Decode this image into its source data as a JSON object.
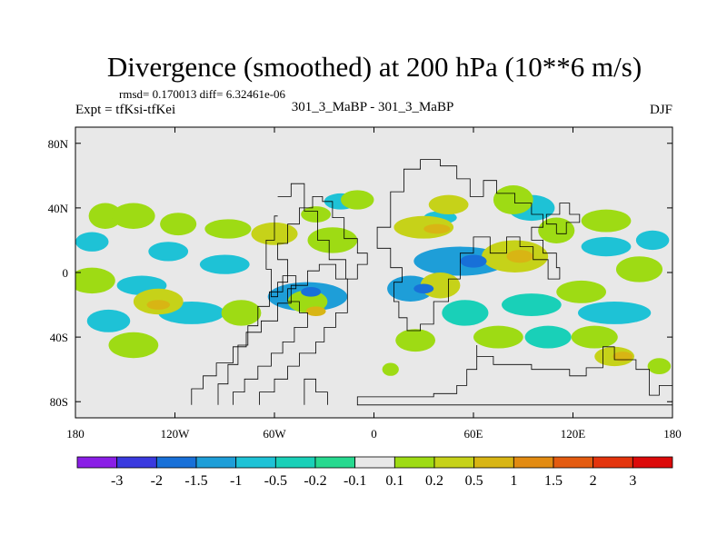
{
  "chart_data": {
    "type": "heatmap",
    "title": "Divergence (smoothed) at 200 hPa (10**6 m/s)",
    "stats_text": "rmsd= 0.170013 diff= 6.32461e-06",
    "experiment_label": "Expt = tfKsi-tfKei",
    "comparison_label": "301_3_MaBP - 301_3_MaBP",
    "season_label": "DJF",
    "x_axis": {
      "range": [
        -180,
        180
      ],
      "ticks": [
        -180,
        -120,
        -60,
        0,
        60,
        120,
        180
      ],
      "tick_labels": [
        "180",
        "120W",
        "60W",
        "0",
        "60E",
        "120E",
        "180"
      ]
    },
    "y_axis": {
      "range": [
        -90,
        90
      ],
      "ticks": [
        80,
        40,
        0,
        -40,
        -80
      ],
      "tick_labels": [
        "80N",
        "40N",
        "0",
        "40S",
        "80S"
      ]
    },
    "colorbar": {
      "levels": [
        "-3",
        "-2",
        "-1.5",
        "-1",
        "-0.5",
        "-0.2",
        "-0.1",
        "0.1",
        "0.2",
        "0.5",
        "1",
        "1.5",
        "2",
        "3"
      ],
      "colors": [
        "#8a1ee6",
        "#3a3adf",
        "#1870d8",
        "#1e9ed8",
        "#1ec2d6",
        "#19d0b8",
        "#27d98f",
        "#e8e8e8",
        "#9edb14",
        "#c6d219",
        "#d8b514",
        "#e28b12",
        "#e35b10",
        "#e3340d",
        "#dc0a0a"
      ]
    },
    "field_background_color": "#e8e8e8",
    "land_outline_color": "#000000",
    "positive_blobs": [
      {
        "lon": -162,
        "lat": 35,
        "rlon": 10,
        "rlat": 8,
        "color": "#9edb14"
      },
      {
        "lon": -145,
        "lat": 35,
        "rlon": 13,
        "rlat": 8,
        "color": "#9edb14"
      },
      {
        "lon": -118,
        "lat": 30,
        "rlon": 11,
        "rlat": 7,
        "color": "#9edb14"
      },
      {
        "lon": -88,
        "lat": 27,
        "rlon": 14,
        "rlat": 6,
        "color": "#9edb14"
      },
      {
        "lon": -60,
        "lat": 24,
        "rlon": 14,
        "rlat": 7,
        "color": "#c6d219"
      },
      {
        "lon": -35,
        "lat": 36,
        "rlon": 9,
        "rlat": 5,
        "color": "#9edb14"
      },
      {
        "lon": -25,
        "lat": 20,
        "rlon": 15,
        "rlat": 8,
        "color": "#9edb14"
      },
      {
        "lon": -10,
        "lat": 45,
        "rlon": 10,
        "rlat": 6,
        "color": "#9edb14"
      },
      {
        "lon": 30,
        "lat": 28,
        "rlon": 18,
        "rlat": 7,
        "color": "#c6d219"
      },
      {
        "lon": 45,
        "lat": 42,
        "rlon": 12,
        "rlat": 6,
        "color": "#c6d219"
      },
      {
        "lon": 84,
        "lat": 45,
        "rlon": 12,
        "rlat": 9,
        "color": "#9edb14"
      },
      {
        "lon": 85,
        "lat": 10,
        "rlon": 20,
        "rlat": 10,
        "color": "#c6d219"
      },
      {
        "lon": 110,
        "lat": 26,
        "rlon": 11,
        "rlat": 8,
        "color": "#9edb14"
      },
      {
        "lon": 140,
        "lat": 32,
        "rlon": 15,
        "rlat": 7,
        "color": "#9edb14"
      },
      {
        "lon": 160,
        "lat": 2,
        "rlon": 14,
        "rlat": 8,
        "color": "#9edb14"
      },
      {
        "lon": 125,
        "lat": -12,
        "rlon": 15,
        "rlat": 7,
        "color": "#9edb14"
      },
      {
        "lon": -170,
        "lat": -5,
        "rlon": 14,
        "rlat": 8,
        "color": "#9edb14"
      },
      {
        "lon": -130,
        "lat": -18,
        "rlon": 15,
        "rlat": 8,
        "color": "#c6d219"
      },
      {
        "lon": -80,
        "lat": -25,
        "rlon": 12,
        "rlat": 8,
        "color": "#9edb14"
      },
      {
        "lon": -40,
        "lat": -18,
        "rlon": 12,
        "rlat": 7,
        "color": "#9edb14"
      },
      {
        "lon": 40,
        "lat": -8,
        "rlon": 12,
        "rlat": 8,
        "color": "#c6d219"
      },
      {
        "lon": 25,
        "lat": -42,
        "rlon": 12,
        "rlat": 7,
        "color": "#9edb14"
      },
      {
        "lon": 75,
        "lat": -40,
        "rlon": 15,
        "rlat": 7,
        "color": "#9edb14"
      },
      {
        "lon": 133,
        "lat": -40,
        "rlon": 14,
        "rlat": 7,
        "color": "#9edb14"
      },
      {
        "lon": -145,
        "lat": -45,
        "rlon": 15,
        "rlat": 8,
        "color": "#9edb14"
      },
      {
        "lon": 145,
        "lat": -52,
        "rlon": 12,
        "rlat": 6,
        "color": "#c6d219"
      },
      {
        "lon": 172,
        "lat": -58,
        "rlon": 7,
        "rlat": 5,
        "color": "#9edb14"
      },
      {
        "lon": 10,
        "lat": -60,
        "rlon": 5,
        "rlat": 4,
        "color": "#9edb14"
      }
    ],
    "negative_blobs": [
      {
        "lon": -170,
        "lat": 19,
        "rlon": 10,
        "rlat": 6,
        "color": "#1ec2d6"
      },
      {
        "lon": -124,
        "lat": 13,
        "rlon": 12,
        "rlat": 6,
        "color": "#1ec2d6"
      },
      {
        "lon": -90,
        "lat": 5,
        "rlon": 15,
        "rlat": 6,
        "color": "#1ec2d6"
      },
      {
        "lon": -140,
        "lat": -8,
        "rlon": 15,
        "rlat": 6,
        "color": "#1ec2d6"
      },
      {
        "lon": -110,
        "lat": -25,
        "rlon": 20,
        "rlat": 7,
        "color": "#1ec2d6"
      },
      {
        "lon": -40,
        "lat": -15,
        "rlon": 24,
        "rlat": 9,
        "color": "#1e9ed8"
      },
      {
        "lon": 22,
        "lat": -10,
        "rlon": 14,
        "rlat": 8,
        "color": "#1e9ed8"
      },
      {
        "lon": 52,
        "lat": 7,
        "rlon": 28,
        "rlat": 9,
        "color": "#1e9ed8"
      },
      {
        "lon": 95,
        "lat": 40,
        "rlon": 14,
        "rlat": 8,
        "color": "#1ec2d6"
      },
      {
        "lon": 140,
        "lat": 16,
        "rlon": 15,
        "rlat": 6,
        "color": "#1ec2d6"
      },
      {
        "lon": 168,
        "lat": 20,
        "rlon": 10,
        "rlat": 6,
        "color": "#1ec2d6"
      },
      {
        "lon": 145,
        "lat": -25,
        "rlon": 22,
        "rlat": 7,
        "color": "#1ec2d6"
      },
      {
        "lon": 95,
        "lat": -20,
        "rlon": 18,
        "rlat": 7,
        "color": "#19d0b8"
      },
      {
        "lon": -20,
        "lat": 44,
        "rlon": 10,
        "rlat": 5,
        "color": "#1ec2d6"
      },
      {
        "lon": 40,
        "lat": 34,
        "rlon": 10,
        "rlat": 4,
        "color": "#1ec2d6"
      },
      {
        "lon": -160,
        "lat": -30,
        "rlon": 13,
        "rlat": 7,
        "color": "#1ec2d6"
      },
      {
        "lon": 55,
        "lat": -25,
        "rlon": 14,
        "rlat": 8,
        "color": "#19d0b8"
      },
      {
        "lon": 105,
        "lat": -40,
        "rlon": 14,
        "rlat": 7,
        "color": "#19d0b8"
      }
    ],
    "intense_patches": [
      {
        "lon": 88,
        "lat": 10,
        "rlon": 8,
        "rlat": 4,
        "color": "#d8b514"
      },
      {
        "lon": 38,
        "lat": 27,
        "rlon": 8,
        "rlat": 3,
        "color": "#d8b514"
      },
      {
        "lon": -130,
        "lat": -20,
        "rlon": 7,
        "rlat": 3,
        "color": "#d8b514"
      },
      {
        "lon": -35,
        "lat": -24,
        "rlon": 6,
        "rlat": 3,
        "color": "#d8b514"
      },
      {
        "lon": 150,
        "lat": -52,
        "rlon": 6,
        "rlat": 3,
        "color": "#d8b514"
      },
      {
        "lon": 30,
        "lat": -10,
        "rlon": 6,
        "rlat": 3,
        "color": "#1870d8"
      },
      {
        "lon": 60,
        "lat": 7,
        "rlon": 8,
        "rlat": 4,
        "color": "#1870d8"
      },
      {
        "lon": -38,
        "lat": -12,
        "rlon": 6,
        "rlat": 3,
        "color": "#1870d8"
      }
    ],
    "land_outlines": [
      [
        [
          -110,
          -82
        ],
        [
          -110,
          -72
        ],
        [
          -103,
          -72
        ],
        [
          -103,
          -64
        ],
        [
          -95,
          -64
        ],
        [
          -95,
          -56
        ],
        [
          -85,
          -56
        ],
        [
          -85,
          -46
        ],
        [
          -77,
          -46
        ],
        [
          -77,
          -37
        ],
        [
          -68,
          -37
        ],
        [
          -68,
          -30
        ],
        [
          -58,
          -30
        ],
        [
          -58,
          -19
        ],
        [
          -50,
          -19
        ],
        [
          -50,
          -8
        ],
        [
          -40,
          -8
        ],
        [
          -40,
          1
        ],
        [
          -33,
          1
        ],
        [
          -33,
          5
        ],
        [
          -23,
          5
        ],
        [
          -23,
          -4
        ],
        [
          -16,
          -4
        ],
        [
          -16,
          -25
        ],
        [
          -23,
          -25
        ],
        [
          -23,
          -34
        ],
        [
          -30,
          -34
        ],
        [
          -30,
          -43
        ],
        [
          -35,
          -43
        ],
        [
          -35,
          -50
        ],
        [
          -45,
          -50
        ],
        [
          -45,
          -58
        ],
        [
          -52,
          -58
        ],
        [
          -52,
          -66
        ],
        [
          -60,
          -66
        ],
        [
          -60,
          -74
        ],
        [
          -69,
          -74
        ],
        [
          -69,
          -82
        ]
      ],
      [
        [
          -85,
          -82
        ],
        [
          -85,
          -74
        ],
        [
          -78,
          -74
        ],
        [
          -78,
          -66
        ],
        [
          -70,
          -66
        ],
        [
          -70,
          -58
        ],
        [
          -62,
          -58
        ],
        [
          -62,
          -50
        ],
        [
          -55,
          -50
        ],
        [
          -55,
          -43
        ],
        [
          -48,
          -43
        ],
        [
          -48,
          -34
        ],
        [
          -40,
          -34
        ],
        [
          -40,
          -25
        ],
        [
          -45,
          -25
        ],
        [
          -45,
          -18
        ],
        [
          -52,
          -18
        ],
        [
          -52,
          -10
        ],
        [
          -47,
          -10
        ],
        [
          -47,
          -2
        ],
        [
          -55,
          -2
        ],
        [
          -55,
          -12
        ],
        [
          -63,
          -12
        ],
        [
          -63,
          -21
        ],
        [
          -70,
          -21
        ],
        [
          -70,
          -33
        ],
        [
          -76,
          -33
        ],
        [
          -76,
          -45
        ],
        [
          -82,
          -45
        ],
        [
          -82,
          -57
        ],
        [
          -88,
          -57
        ],
        [
          -88,
          -69
        ],
        [
          -94,
          -69
        ],
        [
          -94,
          -82
        ]
      ],
      [
        [
          -28,
          -82
        ],
        [
          -28,
          -74
        ],
        [
          -35,
          -74
        ],
        [
          -35,
          -66
        ],
        [
          -42,
          -66
        ],
        [
          -42,
          -82
        ]
      ],
      [
        [
          -58,
          47
        ],
        [
          -50,
          47
        ],
        [
          -50,
          55
        ],
        [
          -42,
          55
        ],
        [
          -42,
          38
        ],
        [
          -34,
          38
        ],
        [
          -34,
          20
        ],
        [
          -27,
          20
        ],
        [
          -27,
          8
        ],
        [
          -17,
          8
        ],
        [
          -17,
          -4
        ],
        [
          -10,
          -4
        ],
        [
          -10,
          5
        ],
        [
          -4,
          5
        ],
        [
          -4,
          12
        ],
        [
          -10,
          12
        ],
        [
          -10,
          21
        ],
        [
          -18,
          21
        ],
        [
          -18,
          34
        ],
        [
          -25,
          34
        ],
        [
          -25,
          44
        ],
        [
          -31,
          44
        ],
        [
          -31,
          47
        ],
        [
          -37,
          47
        ],
        [
          -37,
          40
        ],
        [
          -45,
          40
        ],
        [
          -45,
          30
        ],
        [
          -52,
          30
        ],
        [
          -52,
          18
        ],
        [
          -58,
          18
        ],
        [
          -58,
          8
        ],
        [
          -52,
          8
        ],
        [
          -52,
          -6
        ],
        [
          -58,
          -6
        ],
        [
          -58,
          -15
        ],
        [
          -62,
          -15
        ],
        [
          -62,
          2
        ],
        [
          -65,
          2
        ],
        [
          -65,
          20
        ],
        [
          -60,
          20
        ],
        [
          -60,
          35
        ],
        [
          -58,
          35
        ]
      ],
      [
        [
          10,
          40
        ],
        [
          10,
          50
        ],
        [
          18,
          50
        ],
        [
          18,
          64
        ],
        [
          28,
          64
        ],
        [
          28,
          70
        ],
        [
          40,
          70
        ],
        [
          40,
          66
        ],
        [
          50,
          66
        ],
        [
          50,
          58
        ],
        [
          58,
          58
        ],
        [
          58,
          47
        ],
        [
          66,
          47
        ],
        [
          66,
          57
        ],
        [
          74,
          57
        ],
        [
          74,
          49
        ],
        [
          85,
          49
        ],
        [
          85,
          43
        ],
        [
          95,
          43
        ],
        [
          95,
          36
        ],
        [
          102,
          36
        ],
        [
          102,
          28
        ],
        [
          95,
          28
        ],
        [
          95,
          20
        ],
        [
          102,
          20
        ],
        [
          102,
          12
        ],
        [
          110,
          12
        ],
        [
          110,
          3
        ],
        [
          112,
          3
        ],
        [
          112,
          -4
        ],
        [
          105,
          -4
        ],
        [
          105,
          8
        ],
        [
          96,
          8
        ],
        [
          96,
          16
        ],
        [
          88,
          16
        ],
        [
          88,
          22
        ],
        [
          80,
          22
        ],
        [
          80,
          12
        ],
        [
          70,
          12
        ],
        [
          70,
          22
        ],
        [
          60,
          22
        ],
        [
          60,
          12
        ],
        [
          52,
          12
        ],
        [
          52,
          -4
        ],
        [
          45,
          -4
        ],
        [
          45,
          -18
        ],
        [
          36,
          -18
        ],
        [
          36,
          -32
        ],
        [
          28,
          -32
        ],
        [
          28,
          -36
        ],
        [
          20,
          -36
        ],
        [
          20,
          -28
        ],
        [
          15,
          -28
        ],
        [
          15,
          -18
        ],
        [
          12,
          -18
        ],
        [
          12,
          -6
        ],
        [
          17,
          -6
        ],
        [
          17,
          3
        ],
        [
          10,
          3
        ],
        [
          10,
          15
        ],
        [
          2,
          15
        ],
        [
          2,
          28
        ],
        [
          10,
          28
        ],
        [
          10,
          40
        ]
      ],
      [
        [
          62,
          -45
        ],
        [
          62,
          -52
        ],
        [
          72,
          -52
        ],
        [
          72,
          -57
        ],
        [
          95,
          -57
        ],
        [
          95,
          -60
        ],
        [
          118,
          -60
        ],
        [
          118,
          -64
        ],
        [
          128,
          -64
        ],
        [
          128,
          -59
        ],
        [
          138,
          -59
        ],
        [
          138,
          -46
        ],
        [
          145,
          -46
        ],
        [
          145,
          -54
        ],
        [
          158,
          -54
        ],
        [
          158,
          -60
        ],
        [
          166,
          -60
        ],
        [
          166,
          -76
        ],
        [
          172,
          -76
        ],
        [
          172,
          -70
        ],
        [
          180,
          -70
        ],
        [
          180,
          -82
        ],
        [
          -10,
          -82
        ],
        [
          -10,
          -77
        ],
        [
          36,
          -77
        ],
        [
          36,
          -75
        ],
        [
          50,
          -75
        ],
        [
          50,
          -70
        ],
        [
          56,
          -70
        ],
        [
          56,
          -60
        ],
        [
          62,
          -60
        ],
        [
          62,
          -45
        ]
      ],
      [
        [
          110,
          24
        ],
        [
          116,
          24
        ],
        [
          116,
          31
        ],
        [
          124,
          31
        ],
        [
          124,
          36
        ],
        [
          118,
          36
        ],
        [
          118,
          43
        ],
        [
          112,
          43
        ],
        [
          112,
          36
        ],
        [
          104,
          36
        ],
        [
          104,
          30
        ],
        [
          110,
          30
        ],
        [
          110,
          24
        ]
      ]
    ]
  }
}
